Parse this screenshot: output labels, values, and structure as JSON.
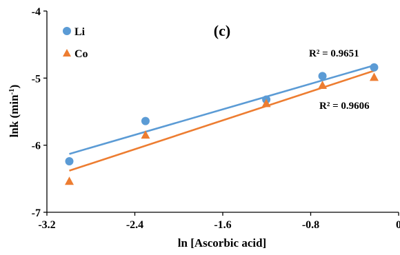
{
  "chart_data": {
    "type": "scatter",
    "panel_label": "(c)",
    "xlabel": "ln [Ascorbic acid]",
    "ylabel": "lnk (min",
    "ylabel_sup": "-1",
    "ylabel_end": ")",
    "xlim": [
      -3.2,
      0
    ],
    "ylim": [
      -7,
      -4
    ],
    "xticks": [
      -3.2,
      -2.4,
      -1.6,
      -0.8,
      0
    ],
    "xtick_labels": [
      "-3.2",
      "-2.4",
      "-1.6",
      "-0.8",
      "0"
    ],
    "yticks": [
      -7,
      -6,
      -5,
      -4
    ],
    "ytick_labels": [
      "-7",
      "-6",
      "-5",
      "-4"
    ],
    "grid": false,
    "legend_position": "top-left",
    "series": [
      {
        "name": "Li",
        "marker": "circle",
        "color": "#5B9BD5",
        "x": [
          -2.996,
          -2.303,
          -1.204,
          -0.693,
          -0.223
        ],
        "y": [
          -6.24,
          -5.64,
          -5.32,
          -4.97,
          -4.84
        ],
        "trendline": {
          "x": [
            -2.996,
            -0.223
          ],
          "y": [
            -6.13,
            -4.81
          ]
        },
        "r2_label": "R² = 0.9651"
      },
      {
        "name": "Co",
        "marker": "triangle",
        "color": "#ED7D31",
        "x": [
          -2.996,
          -2.303,
          -1.204,
          -0.693,
          -0.223
        ],
        "y": [
          -6.54,
          -5.85,
          -5.38,
          -5.11,
          -4.99
        ],
        "trendline": {
          "x": [
            -2.996,
            -0.223
          ],
          "y": [
            -6.38,
            -4.89
          ]
        },
        "r2_label": "R² = 0.9606"
      }
    ]
  }
}
